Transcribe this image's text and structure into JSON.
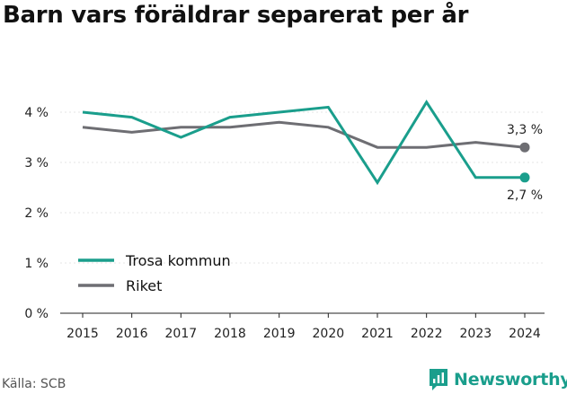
{
  "title": "Barn vars föräldrar separerat per år",
  "source": "Källa: SCB",
  "brand": {
    "name": "Newsworthy",
    "icon": "newsworthy-logo-icon"
  },
  "colors": {
    "trosa": "#1a9e8c",
    "riket": "#6e6e73",
    "grid": "#e5e5e5",
    "axis": "#222222"
  },
  "chart_data": {
    "type": "line",
    "title": "Barn vars föräldrar separerat per år",
    "x": [
      2015,
      2016,
      2017,
      2018,
      2019,
      2020,
      2021,
      2022,
      2023,
      2024
    ],
    "xtick_labels": [
      "2015",
      "2016",
      "2017",
      "2018",
      "2019",
      "2020",
      "2021",
      "2022",
      "2023",
      "2024"
    ],
    "ylim": [
      0,
      4
    ],
    "yticks": [
      0,
      1,
      2,
      3,
      4
    ],
    "ytick_labels": [
      "0 %",
      "1 %",
      "2 %",
      "3 %",
      "4 %"
    ],
    "grid": true,
    "legend_position": "bottom-left",
    "series": [
      {
        "name": "Trosa kommun",
        "color": "#1a9e8c",
        "values": [
          4.0,
          3.9,
          3.5,
          3.9,
          4.0,
          4.1,
          2.6,
          4.2,
          2.7,
          2.7
        ],
        "end_label": "2,7 %"
      },
      {
        "name": "Riket",
        "color": "#6e6e73",
        "values": [
          3.7,
          3.6,
          3.7,
          3.7,
          3.8,
          3.7,
          3.3,
          3.3,
          3.4,
          3.3
        ],
        "end_label": "3,3 %"
      }
    ]
  }
}
